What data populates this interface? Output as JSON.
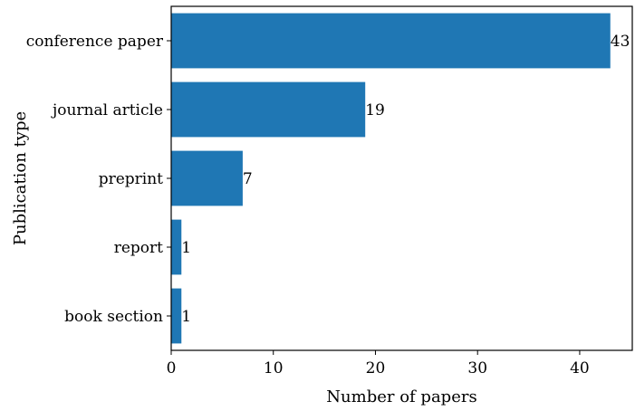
{
  "chart_data": {
    "type": "bar",
    "orientation": "horizontal",
    "categories": [
      "conference paper",
      "journal article",
      "preprint",
      "report",
      "book section"
    ],
    "values": [
      43,
      19,
      7,
      1,
      1
    ],
    "data_labels": [
      "43",
      "19",
      "7",
      "1",
      "1"
    ],
    "title": "",
    "xlabel": "Number of papers",
    "ylabel": "Publication type",
    "xlim": [
      0,
      45.15
    ],
    "xticks": [
      0,
      10,
      20,
      30,
      40
    ],
    "xtick_labels": [
      "0",
      "10",
      "20",
      "30",
      "40"
    ],
    "grid": false,
    "bar_color": "#1f77b4"
  }
}
